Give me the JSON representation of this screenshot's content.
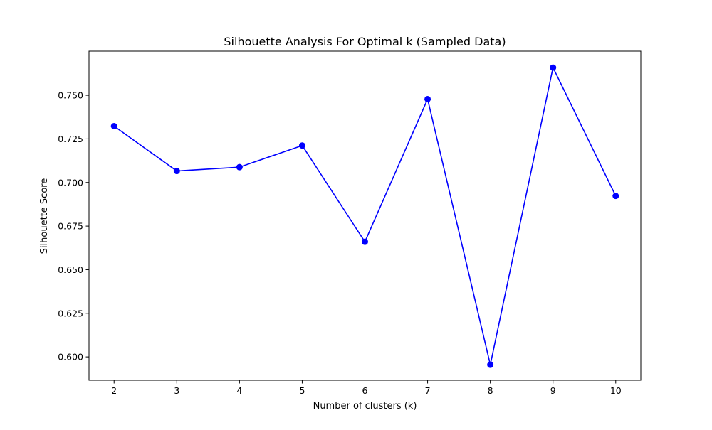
{
  "chart_data": {
    "type": "line",
    "title": "Silhouette Analysis For Optimal k (Sampled Data)",
    "xlabel": "Number of clusters (k)",
    "ylabel": "Silhouette Score",
    "x": [
      2,
      3,
      4,
      5,
      6,
      7,
      8,
      9,
      10
    ],
    "x_tick_labels": [
      "2",
      "3",
      "4",
      "5",
      "6",
      "7",
      "8",
      "9",
      "10"
    ],
    "y_ticks": [
      0.6,
      0.625,
      0.65,
      0.675,
      0.7,
      0.725,
      0.75
    ],
    "y_tick_labels": [
      "0.600",
      "0.625",
      "0.650",
      "0.675",
      "0.700",
      "0.725",
      "0.750"
    ],
    "xlim": [
      1.6,
      10.4
    ],
    "ylim": [
      0.5866,
      0.7753
    ],
    "grid": false,
    "legend": "none",
    "series": [
      {
        "values": [
          0.7323,
          0.7066,
          0.7088,
          0.7212,
          0.666,
          0.7478,
          0.5955,
          0.7659,
          0.6923
        ],
        "color": "#0000ff",
        "marker": "circle",
        "line_style": "solid"
      }
    ]
  }
}
